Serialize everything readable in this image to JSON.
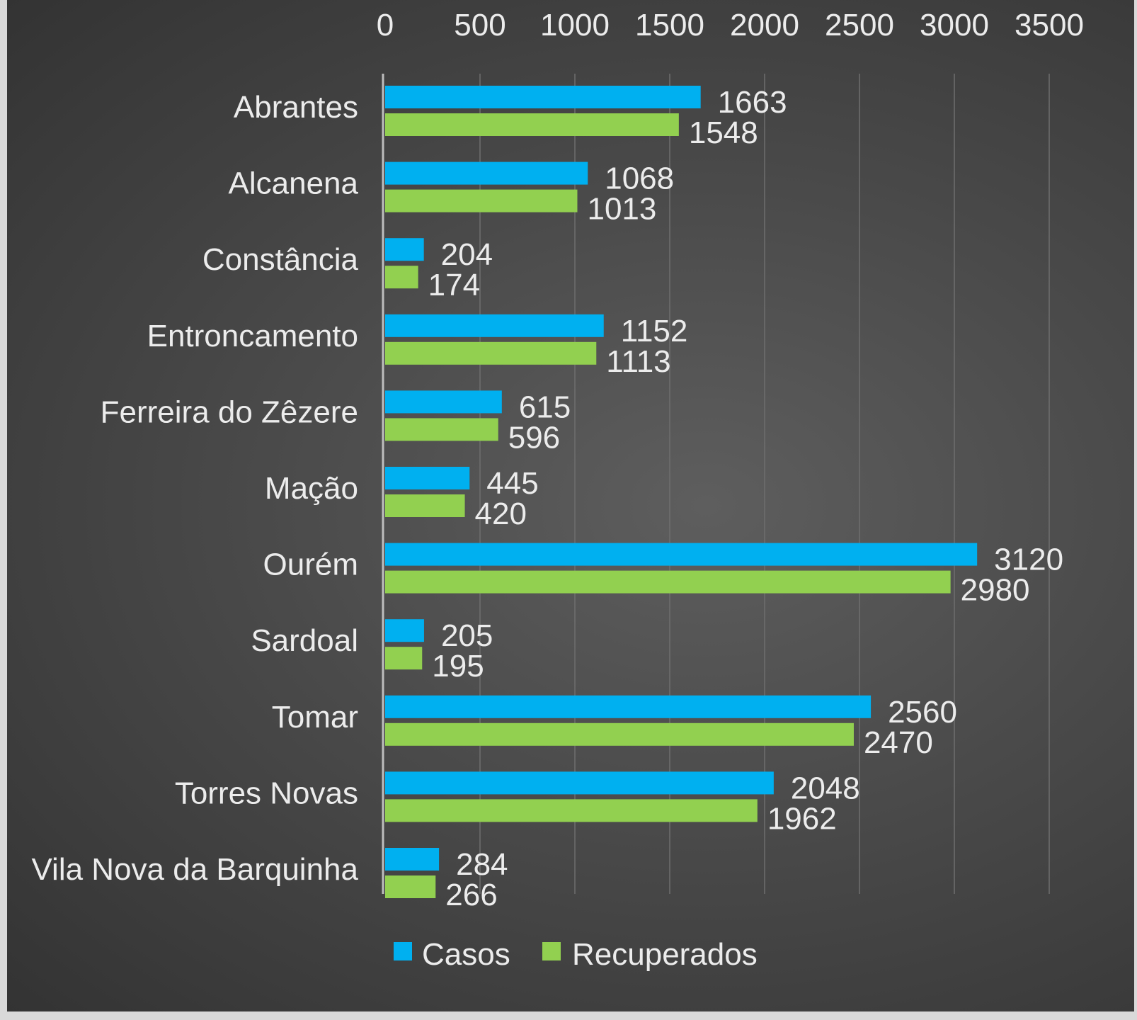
{
  "chart_data": {
    "type": "bar",
    "orientation": "horizontal",
    "categories": [
      "Abrantes",
      "Alcanena",
      "Constância",
      "Entroncamento",
      "Ferreira do Zêzere",
      "Mação",
      "Ourém",
      "Sardoal",
      "Tomar",
      "Torres Novas",
      "Vila Nova da Barquinha"
    ],
    "series": [
      {
        "name": "Casos",
        "color": "#00b0f0",
        "values": [
          1663,
          1068,
          204,
          1152,
          615,
          445,
          3120,
          205,
          2560,
          2048,
          284
        ]
      },
      {
        "name": "Recuperados",
        "color": "#92d050",
        "values": [
          1548,
          1013,
          174,
          1113,
          596,
          420,
          2980,
          195,
          2470,
          1962,
          266
        ]
      }
    ],
    "xlim": [
      0,
      3500
    ],
    "x_ticks": [
      0,
      500,
      1000,
      1500,
      2000,
      2500,
      3000,
      3500
    ],
    "x_axis_position": "top",
    "title": "",
    "xlabel": "",
    "ylabel": "",
    "grid": true,
    "data_labels": true,
    "legend": "bottom",
    "background": "dark-gradient"
  }
}
